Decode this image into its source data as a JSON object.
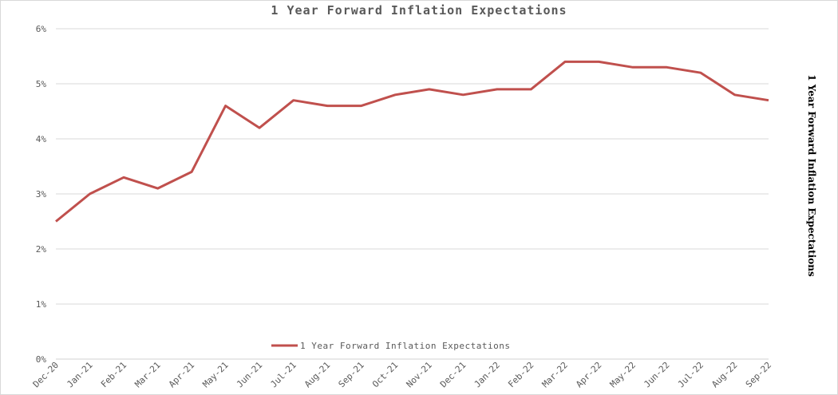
{
  "chart_data": {
    "type": "line",
    "title": "1 Year Forward Inflation Expectations",
    "secondary_axis_title": "1 Year Forward Inflation Expectations",
    "categories": [
      "Dec-20",
      "Jan-21",
      "Feb-21",
      "Mar-21",
      "Apr-21",
      "May-21",
      "Jun-21",
      "Jul-21",
      "Aug-21",
      "Sep-21",
      "Oct-21",
      "Nov-21",
      "Dec-21",
      "Jan-22",
      "Feb-22",
      "Mar-22",
      "Apr-22",
      "May-22",
      "Jun-22",
      "Jul-22",
      "Aug-22",
      "Sep-22"
    ],
    "series": [
      {
        "name": "1 Year Forward Inflation Expectations",
        "color": "#c0504d",
        "values": [
          2.5,
          3.0,
          3.3,
          3.1,
          3.4,
          4.6,
          4.2,
          4.7,
          4.6,
          4.6,
          4.8,
          4.9,
          4.8,
          4.9,
          4.9,
          5.4,
          5.4,
          5.3,
          5.3,
          5.2,
          4.8,
          4.7
        ]
      }
    ],
    "yticks": [
      "0%",
      "1%",
      "2%",
      "3%",
      "4%",
      "5%",
      "6%"
    ],
    "ylim": [
      0,
      6
    ],
    "grid": true,
    "legend": "bottom-center",
    "gridline_color": "#d9d9d9"
  }
}
